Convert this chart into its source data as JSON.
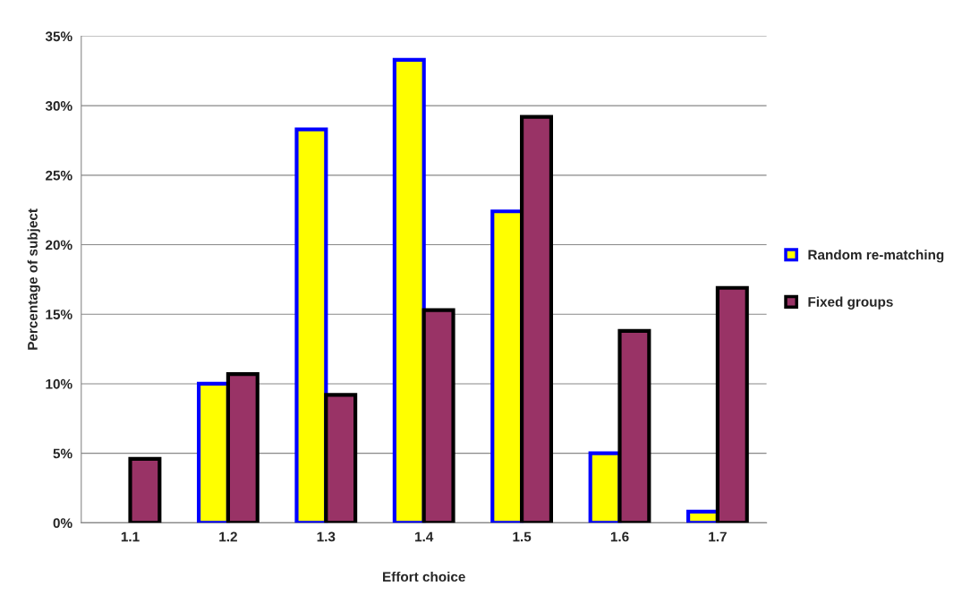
{
  "chart_data": {
    "type": "bar",
    "xlabel": "Effort choice",
    "ylabel": "Percentage of subject",
    "categories": [
      "1.1",
      "1.2",
      "1.3",
      "1.4",
      "1.5",
      "1.6",
      "1.7"
    ],
    "series": [
      {
        "name": "Random re-matching",
        "color": "#ffff00",
        "values": [
          null,
          10.0,
          28.3,
          33.3,
          22.4,
          5.0,
          0.8
        ]
      },
      {
        "name": "Fixed groups",
        "color": "#993366",
        "values": [
          4.6,
          10.7,
          9.2,
          15.3,
          29.2,
          13.8,
          16.9
        ]
      }
    ],
    "ylim": [
      0,
      35
    ],
    "yticks": [
      {
        "value": 0,
        "label": "0%"
      },
      {
        "value": 5,
        "label": "5%"
      },
      {
        "value": 10,
        "label": "10%"
      },
      {
        "value": 15,
        "label": "15%"
      },
      {
        "value": 20,
        "label": "20%"
      },
      {
        "value": 25,
        "label": "25%"
      },
      {
        "value": 30,
        "label": "30%"
      },
      {
        "value": 35,
        "label": "35%"
      }
    ],
    "grid": "y",
    "legend": "right"
  }
}
